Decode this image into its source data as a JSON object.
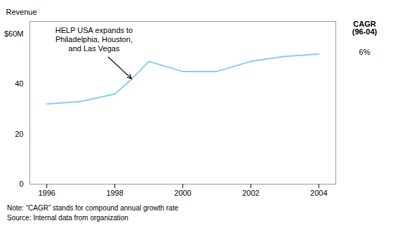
{
  "chart_data": {
    "type": "line",
    "x": [
      1996,
      1997,
      1998,
      1998.5,
      1999,
      2000,
      2001,
      2002,
      2003,
      2004
    ],
    "values": [
      32,
      33,
      36,
      42,
      49,
      45,
      45,
      49,
      51,
      52
    ],
    "color": "#87CEEB",
    "xlim": [
      1995.5,
      2004.5
    ],
    "xticks": [
      1996,
      1998,
      2000,
      2002,
      2004
    ],
    "ylim": [
      0,
      65
    ],
    "yticks": [
      0,
      20,
      40,
      {
        "value": 60,
        "label": "$60M"
      }
    ],
    "ylabel": "Revenue",
    "grid": false,
    "annotations": [
      {
        "text": "HELP USA expands to\nPhiladelphia, Houston,\nand Las Vegas",
        "x": 1998.5,
        "y": 42
      }
    ],
    "cagr_label": "CAGR\n(96-04)",
    "cagr_value": "6%",
    "notes": [
      "Note: “CAGR” stands for compound annual growth rate",
      "Source: Internal data from organization"
    ]
  }
}
